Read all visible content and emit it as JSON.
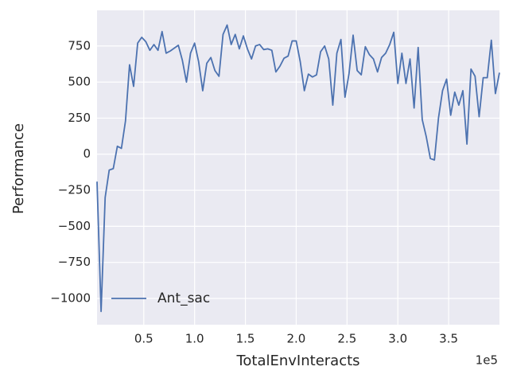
{
  "chart_data": {
    "type": "line",
    "x_label": "TotalEnvInteracts",
    "y_label": "Performance",
    "x_offset_label": "1e5",
    "x": [
      4000,
      8000,
      12000,
      16000,
      20000,
      24000,
      28000,
      32000,
      36000,
      40000,
      44000,
      48000,
      52000,
      56000,
      60000,
      64000,
      68000,
      72000,
      76000,
      80000,
      84000,
      88000,
      92000,
      96000,
      100000,
      104000,
      108000,
      112000,
      116000,
      120000,
      124000,
      128000,
      132000,
      136000,
      140000,
      144000,
      148000,
      152000,
      156000,
      160000,
      164000,
      168000,
      172000,
      176000,
      180000,
      184000,
      188000,
      192000,
      196000,
      200000,
      204000,
      208000,
      212000,
      216000,
      220000,
      224000,
      228000,
      232000,
      236000,
      240000,
      244000,
      248000,
      252000,
      256000,
      260000,
      264000,
      268000,
      272000,
      276000,
      280000,
      284000,
      288000,
      292000,
      296000,
      300000,
      304000,
      308000,
      312000,
      316000,
      320000,
      324000,
      328000,
      332000,
      336000,
      340000,
      344000,
      348000,
      352000,
      356000,
      360000,
      364000,
      368000,
      372000,
      376000,
      380000,
      384000,
      388000,
      392000,
      396000,
      400000
    ],
    "series": [
      {
        "name": "Ant_sac",
        "color": "#4c72b0",
        "values": [
          -190,
          -1090,
          -300,
          -110,
          -100,
          55,
          40,
          230,
          620,
          470,
          770,
          810,
          780,
          720,
          760,
          720,
          850,
          700,
          715,
          735,
          755,
          650,
          500,
          700,
          770,
          640,
          440,
          630,
          670,
          580,
          540,
          830,
          895,
          760,
          830,
          730,
          820,
          730,
          660,
          750,
          760,
          725,
          730,
          720,
          570,
          610,
          665,
          680,
          785,
          785,
          640,
          440,
          555,
          535,
          550,
          710,
          750,
          660,
          340,
          700,
          795,
          395,
          560,
          825,
          580,
          550,
          745,
          690,
          660,
          570,
          670,
          700,
          760,
          845,
          490,
          700,
          490,
          660,
          320,
          740,
          240,
          120,
          -30,
          -40,
          250,
          440,
          520,
          270,
          430,
          340,
          440,
          70,
          590,
          540,
          260,
          530,
          530,
          790,
          420,
          565
        ]
      }
    ],
    "xlim": [
      4000,
      400000
    ],
    "xticks": [
      {
        "value": 50000,
        "label": "0.5"
      },
      {
        "value": 100000,
        "label": "1.0"
      },
      {
        "value": 150000,
        "label": "1.5"
      },
      {
        "value": 200000,
        "label": "2.0"
      },
      {
        "value": 250000,
        "label": "2.5"
      },
      {
        "value": 300000,
        "label": "3.0"
      },
      {
        "value": 350000,
        "label": "3.5"
      }
    ],
    "ylim": [
      -1182,
      997
    ],
    "yticks": [
      {
        "value": -1000,
        "label": "−1000"
      },
      {
        "value": -750,
        "label": "−750"
      },
      {
        "value": -500,
        "label": "−500"
      },
      {
        "value": -250,
        "label": "−250"
      },
      0,
      250,
      500,
      750
    ],
    "grid": true,
    "legend": "lower left"
  }
}
